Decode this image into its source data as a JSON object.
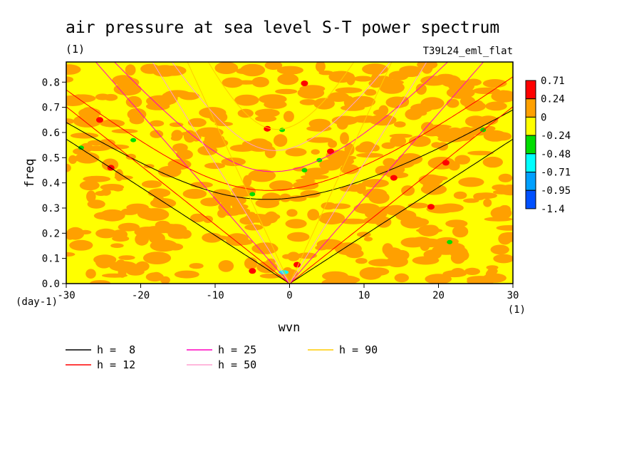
{
  "chart_data": {
    "type": "heatmap",
    "title": "air pressure at sea level S-T power spectrum",
    "units_label": "(1)",
    "run_label": "T39L24_eml_flat",
    "xlabel": "wvn",
    "x_units": "(1)",
    "ylabel": "freq",
    "y_units": "(day-1)",
    "xlim": [
      -30,
      30
    ],
    "ylim": [
      0,
      0.88
    ],
    "x_ticks": [
      -30,
      -20,
      -10,
      0,
      10,
      20,
      30
    ],
    "y_ticks": [
      0.0,
      0.1,
      0.2,
      0.3,
      0.4,
      0.5,
      0.6,
      0.7,
      0.8
    ],
    "x_tick_labels": [
      "-30",
      "-20",
      "-10",
      "0",
      "10",
      "20",
      "30"
    ],
    "y_tick_labels": [
      "0.0",
      "0.1",
      "0.2",
      "0.3",
      "0.4",
      "0.5",
      "0.6",
      "0.7",
      "0.8"
    ],
    "colorbar": {
      "labels": [
        "0.71",
        "0.24",
        "0",
        "-0.24",
        "-0.48",
        "-0.71",
        "-0.95",
        "-1.4"
      ],
      "colors": [
        "#ff0000",
        "#ffa000",
        "#ffff00",
        "#00dd00",
        "#00ffff",
        "#00a0ff",
        "#0050ff"
      ]
    },
    "background_color": "#ffff00",
    "blob_color": "#ffa000",
    "dispersion_curves": [
      {
        "name": "h =  8",
        "h": 8,
        "color": "#000000"
      },
      {
        "name": "h = 12",
        "h": 12,
        "color": "#ff0000"
      },
      {
        "name": "h = 25",
        "h": 25,
        "color": "#ff00c0"
      },
      {
        "name": "h = 50",
        "h": 50,
        "color": "#ffa0d0"
      },
      {
        "name": "h = 90",
        "h": 90,
        "color": "#ffcc00"
      }
    ]
  }
}
